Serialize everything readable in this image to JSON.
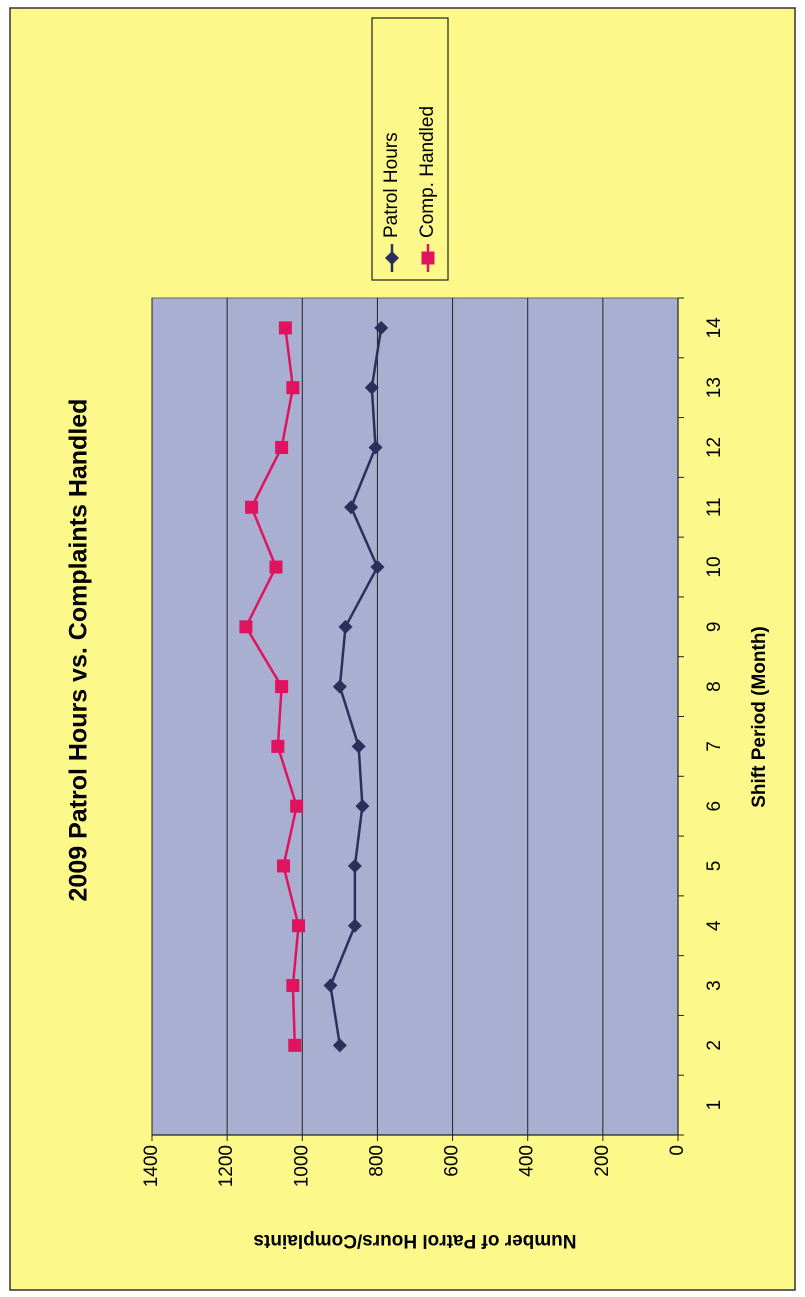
{
  "chart_data": {
    "type": "line",
    "title": "2009 Patrol Hours vs. Complaints Handled",
    "x_label": "Shift Period (Month)",
    "y_label": "Number of Patrol Hours/Complaints",
    "categories": [
      "1",
      "2",
      "3",
      "4",
      "5",
      "6",
      "7",
      "8",
      "9",
      "10",
      "11",
      "12",
      "13",
      "14"
    ],
    "series": [
      {
        "name": "Patrol Hours",
        "color": "#2b2f5c",
        "marker": "diamond",
        "values": [
          null,
          900,
          925,
          860,
          860,
          840,
          850,
          900,
          885,
          800,
          870,
          805,
          815,
          790
        ]
      },
      {
        "name": "Comp. Handled",
        "color": "#e0135f",
        "marker": "square",
        "values": [
          null,
          1020,
          1025,
          1010,
          1050,
          1015,
          1065,
          1055,
          1150,
          1070,
          1135,
          1055,
          1025,
          1045
        ]
      }
    ],
    "ylim": [
      0,
      1400
    ],
    "yticks": [
      0,
      200,
      400,
      600,
      800,
      1000,
      1200,
      1400
    ],
    "grid": true,
    "legend": "right"
  }
}
